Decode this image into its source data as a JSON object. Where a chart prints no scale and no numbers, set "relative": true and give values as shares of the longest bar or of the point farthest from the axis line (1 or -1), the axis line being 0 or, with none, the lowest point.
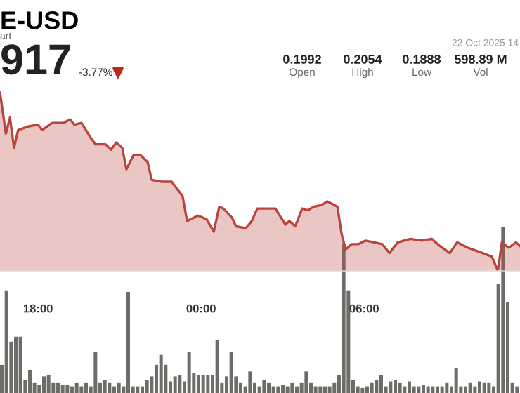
{
  "chart_data": [
    {
      "type": "area",
      "title": "E-USD",
      "subtitle": "art",
      "relative": true,
      "annotations": [
        "917",
        "-3.77%",
        "0.1992",
        "Open",
        "0.2054",
        "High",
        "0.1888",
        "Low",
        "598.89 M",
        "Vol",
        "22 Oct 2025 14"
      ],
      "xlim": [
        "2025-10-21T16:36",
        "2025-10-22T11:44"
      ],
      "xticks": [
        {
          "value": "2025-10-21T18:00",
          "label": "18:00"
        },
        {
          "value": "2025-10-22T00:00",
          "label": "00:00"
        },
        {
          "value": "2025-10-22T06:00",
          "label": "06:00"
        }
      ],
      "series": [
        {
          "color": "#b9443d",
          "x": [
            "2025-10-21T16:36",
            "2025-10-21T16:49",
            "2025-10-21T16:58",
            "2025-10-21T17:07",
            "2025-10-21T17:16",
            "2025-10-21T17:38",
            "2025-10-21T18:00",
            "2025-10-21T18:09",
            "2025-10-21T18:31",
            "2025-10-21T18:56",
            "2025-10-21T19:11",
            "2025-10-21T19:20",
            "2025-10-21T19:36",
            "2025-10-21T19:58",
            "2025-10-21T20:07",
            "2025-10-21T20:29",
            "2025-10-21T20:41",
            "2025-10-21T20:53",
            "2025-10-21T21:06",
            "2025-10-21T21:15",
            "2025-10-21T21:31",
            "2025-10-21T21:46",
            "2025-10-21T22:02",
            "2025-10-21T22:11",
            "2025-10-21T22:33",
            "2025-10-21T22:55",
            "2025-10-21T23:19",
            "2025-10-21T23:29",
            "2025-10-21T23:53",
            "2025-10-22T00:12",
            "2025-10-22T00:28",
            "2025-10-22T00:40",
            "2025-10-22T00:49",
            "2025-10-22T01:08",
            "2025-10-22T01:17",
            "2025-10-22T01:39",
            "2025-10-22T01:52",
            "2025-10-22T02:04",
            "2025-10-22T02:26",
            "2025-10-22T02:44",
            "2025-10-22T03:06",
            "2025-10-22T03:15",
            "2025-10-22T03:28",
            "2025-10-22T03:43",
            "2025-10-22T03:56",
            "2025-10-22T04:08",
            "2025-10-22T04:26",
            "2025-10-22T04:39",
            "2025-10-22T05:01",
            "2025-10-22T05:10",
            "2025-10-22T05:19",
            "2025-10-22T05:32",
            "2025-10-22T05:47",
            "2025-10-22T06:03",
            "2025-10-22T06:22",
            "2025-10-22T06:40",
            "2025-10-22T06:56",
            "2025-10-22T07:14",
            "2025-10-22T07:42",
            "2025-10-22T08:07",
            "2025-10-22T08:29",
            "2025-10-22T08:47",
            "2025-10-22T09:09",
            "2025-10-22T09:25",
            "2025-10-22T09:49",
            "2025-10-22T10:11",
            "2025-10-22T10:42",
            "2025-10-22T10:55",
            "2025-10-22T11:04",
            "2025-10-22T11:19",
            "2025-10-22T11:35",
            "2025-10-22T11:44"
          ],
          "values": [
            1.0,
            0.77,
            0.86,
            0.69,
            0.79,
            0.81,
            0.82,
            0.79,
            0.83,
            0.83,
            0.85,
            0.82,
            0.83,
            0.74,
            0.71,
            0.71,
            0.68,
            0.72,
            0.69,
            0.57,
            0.65,
            0.65,
            0.61,
            0.51,
            0.5,
            0.5,
            0.42,
            0.28,
            0.31,
            0.29,
            0.22,
            0.36,
            0.35,
            0.3,
            0.25,
            0.24,
            0.28,
            0.35,
            0.35,
            0.35,
            0.26,
            0.28,
            0.25,
            0.35,
            0.34,
            0.36,
            0.37,
            0.39,
            0.36,
            0.21,
            0.12,
            0.15,
            0.15,
            0.17,
            0.16,
            0.15,
            0.1,
            0.16,
            0.18,
            0.17,
            0.18,
            0.14,
            0.1,
            0.16,
            0.13,
            0.11,
            0.08,
            0.0,
            0.16,
            0.13,
            0.16,
            0.14
          ]
        }
      ]
    },
    {
      "type": "bar",
      "relative": true,
      "categories": [
        null,
        null,
        null,
        null,
        null,
        null,
        null,
        null,
        null,
        null,
        null,
        null,
        null,
        null,
        null,
        null,
        null,
        null,
        null,
        null,
        null,
        null,
        null,
        null,
        null,
        null,
        null,
        null,
        null,
        null,
        null,
        null,
        null,
        null,
        null,
        null,
        null,
        null,
        null,
        null,
        null,
        null,
        null,
        null,
        null,
        null,
        null,
        null,
        null,
        null,
        null,
        null,
        null,
        null,
        null,
        null,
        null,
        null,
        null,
        null,
        null,
        null,
        null,
        null,
        null,
        null,
        null,
        null,
        null,
        null,
        null,
        null,
        null,
        null,
        null,
        null,
        null,
        null,
        null,
        null,
        null,
        null,
        null,
        null,
        null,
        null,
        null,
        null,
        null,
        null,
        null,
        null,
        null,
        null,
        null,
        null,
        null,
        null,
        null,
        null,
        null,
        null,
        null,
        null,
        null,
        null,
        null,
        null,
        null,
        null,
        null
      ],
      "series": [
        {
          "color": "#6b6e68",
          "values": [
            0.17,
            0.62,
            0.31,
            0.34,
            0.34,
            0.08,
            0.14,
            0.06,
            0.05,
            0.1,
            0.11,
            0.06,
            0.06,
            0.05,
            0.05,
            0.04,
            0.06,
            0.04,
            0.06,
            0.04,
            0.25,
            0.06,
            0.08,
            0.06,
            0.04,
            0.06,
            0.04,
            0.61,
            0.04,
            0.04,
            0.04,
            0.08,
            0.1,
            0.17,
            0.23,
            0.17,
            0.07,
            0.1,
            0.11,
            0.07,
            0.25,
            0.12,
            0.11,
            0.11,
            0.11,
            0.11,
            0.32,
            0.06,
            0.1,
            0.25,
            0.1,
            0.06,
            0.04,
            0.13,
            0.06,
            0.04,
            0.08,
            0.06,
            0.04,
            0.04,
            0.05,
            0.04,
            0.06,
            0.04,
            0.06,
            0.13,
            0.06,
            0.04,
            0.04,
            0.04,
            0.04,
            0.06,
            0.11,
            0.9,
            0.62,
            0.08,
            0.04,
            0.03,
            0.04,
            0.06,
            0.08,
            0.11,
            0.04,
            0.07,
            0.08,
            0.06,
            0.04,
            0.07,
            0.04,
            0.04,
            0.05,
            0.04,
            0.04,
            0.04,
            0.04,
            0.06,
            0.04,
            0.15,
            0.04,
            0.04,
            0.06,
            0.04,
            0.07,
            0.06,
            0.06,
            0.04,
            0.66,
            1.0,
            0.55,
            0.06,
            0.04
          ]
        }
      ]
    }
  ]
}
